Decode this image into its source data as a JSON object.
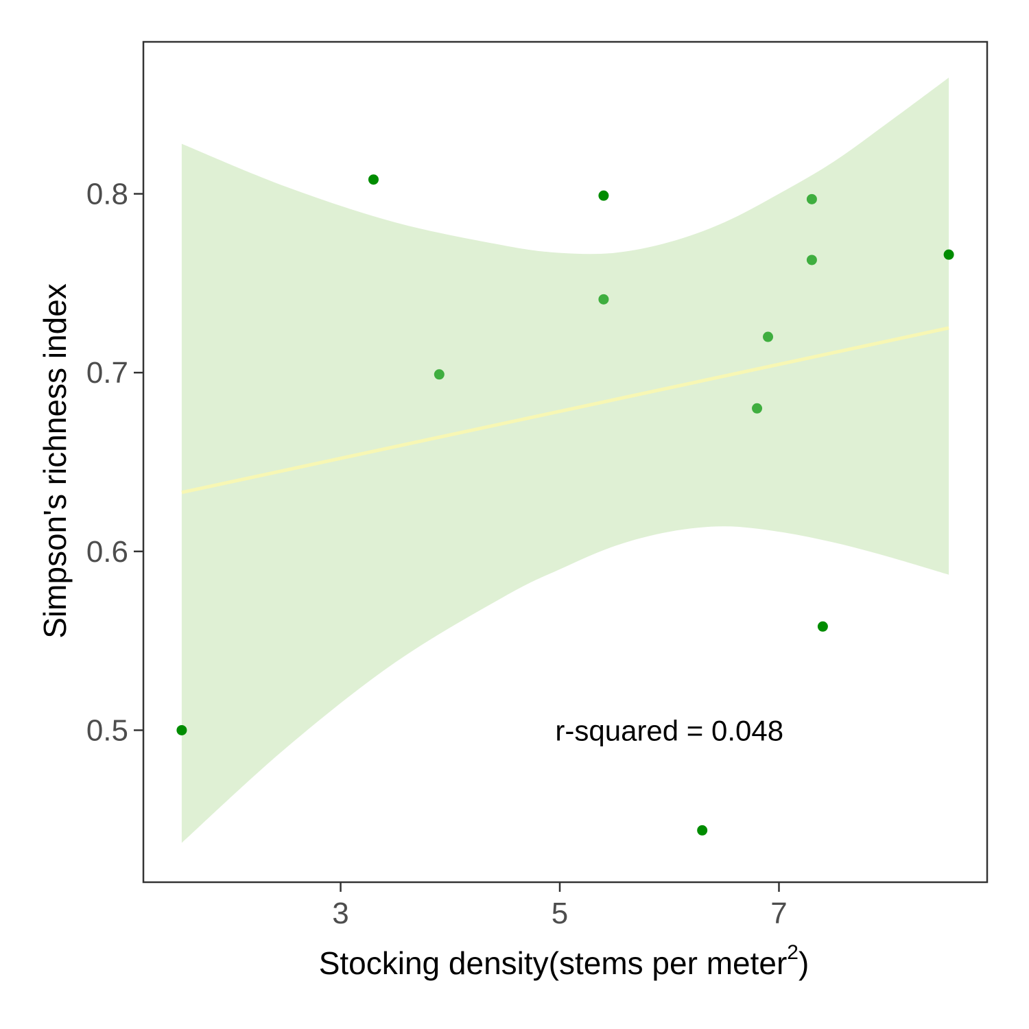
{
  "chart_data": {
    "type": "scatter",
    "title": "",
    "xlabel": "Stocking density(stems per meter",
    "xlabel_superscript": "2",
    "xlabel_close": ")",
    "ylabel": "Simpson's richness index",
    "xlim": [
      1.2,
      8.9
    ],
    "ylim": [
      0.415,
      0.885
    ],
    "x_ticks": [
      3,
      5,
      7
    ],
    "x_tick_labels": [
      "3",
      "5",
      "7"
    ],
    "y_ticks": [
      0.5,
      0.6,
      0.7,
      0.8
    ],
    "y_tick_labels": [
      "0.5",
      "0.6",
      "0.7",
      "0.8"
    ],
    "grid": false,
    "legend": "none",
    "points": [
      {
        "x": 1.55,
        "y": 0.5,
        "color": "#008c00"
      },
      {
        "x": 3.3,
        "y": 0.808,
        "color": "#008c00"
      },
      {
        "x": 3.9,
        "y": 0.699,
        "color": "#3fae3f"
      },
      {
        "x": 5.4,
        "y": 0.799,
        "color": "#008c00"
      },
      {
        "x": 5.4,
        "y": 0.741,
        "color": "#3fae3f"
      },
      {
        "x": 6.3,
        "y": 0.444,
        "color": "#008c00"
      },
      {
        "x": 6.8,
        "y": 0.68,
        "color": "#3fae3f"
      },
      {
        "x": 6.9,
        "y": 0.72,
        "color": "#3fae3f"
      },
      {
        "x": 7.3,
        "y": 0.797,
        "color": "#3fae3f"
      },
      {
        "x": 7.3,
        "y": 0.763,
        "color": "#3fae3f"
      },
      {
        "x": 7.4,
        "y": 0.558,
        "color": "#008c00"
      },
      {
        "x": 8.55,
        "y": 0.766,
        "color": "#008c00"
      }
    ],
    "fit_line": {
      "x": [
        1.55,
        8.55
      ],
      "y": [
        0.633,
        0.725
      ],
      "color": "#f7f7b4"
    },
    "confidence_band": {
      "upper": [
        {
          "x": 1.55,
          "y": 0.828
        },
        {
          "x": 2.5,
          "y": 0.804
        },
        {
          "x": 3.5,
          "y": 0.784
        },
        {
          "x": 4.5,
          "y": 0.771
        },
        {
          "x": 5.0,
          "y": 0.767
        },
        {
          "x": 5.5,
          "y": 0.767
        },
        {
          "x": 6.0,
          "y": 0.773
        },
        {
          "x": 6.5,
          "y": 0.784
        },
        {
          "x": 7.0,
          "y": 0.8
        },
        {
          "x": 7.5,
          "y": 0.818
        },
        {
          "x": 8.0,
          "y": 0.84
        },
        {
          "x": 8.55,
          "y": 0.865
        }
      ],
      "lower": [
        {
          "x": 1.55,
          "y": 0.437
        },
        {
          "x": 2.5,
          "y": 0.49
        },
        {
          "x": 3.5,
          "y": 0.538
        },
        {
          "x": 4.5,
          "y": 0.575
        },
        {
          "x": 5.0,
          "y": 0.59
        },
        {
          "x": 5.5,
          "y": 0.603
        },
        {
          "x": 6.0,
          "y": 0.611
        },
        {
          "x": 6.5,
          "y": 0.614
        },
        {
          "x": 7.0,
          "y": 0.611
        },
        {
          "x": 7.5,
          "y": 0.605
        },
        {
          "x": 8.0,
          "y": 0.597
        },
        {
          "x": 8.55,
          "y": 0.587
        }
      ],
      "color": "#dff0d4"
    },
    "annotations": [
      {
        "text": "r-squared = 0.048",
        "x": 6.0,
        "y": 0.5
      }
    ]
  }
}
